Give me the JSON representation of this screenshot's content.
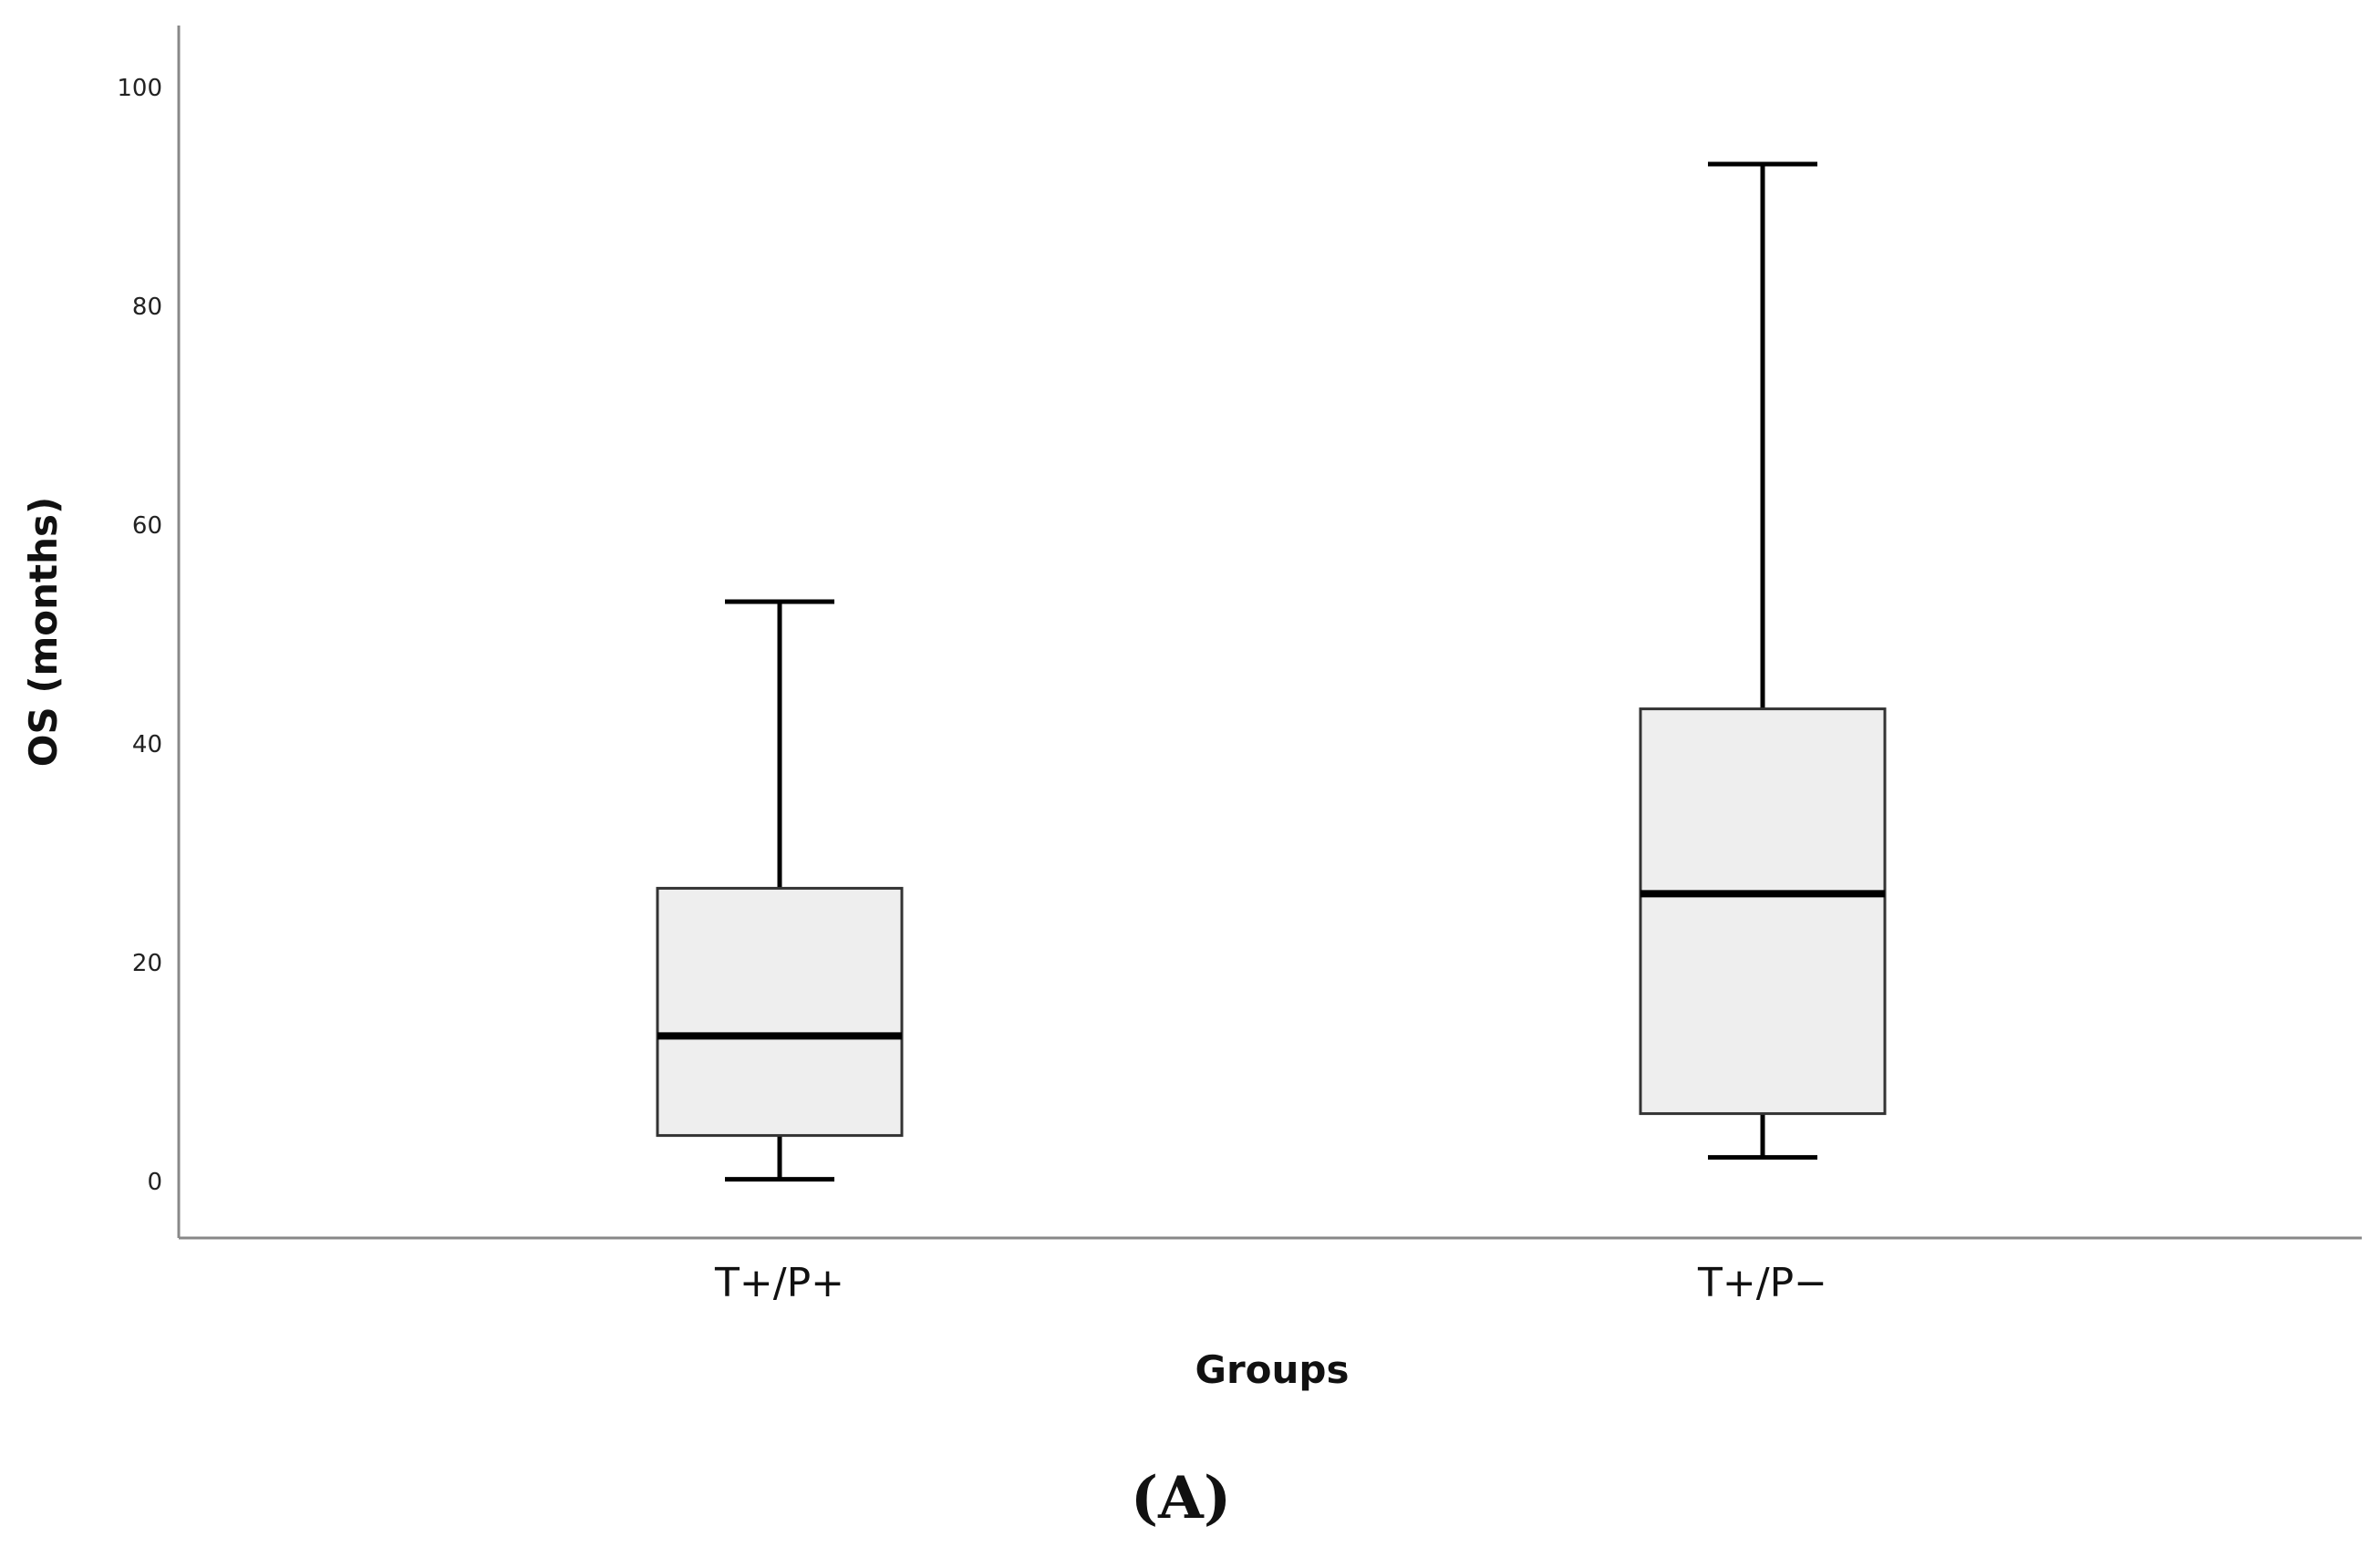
{
  "chart_data": {
    "type": "box",
    "title": "",
    "xlabel": "Groups",
    "ylabel": "OS (months)",
    "ylim": [
      0,
      105
    ],
    "yticks": [
      0,
      20,
      40,
      60,
      80,
      100
    ],
    "ytick_labels": [
      "0",
      "20",
      "40",
      "60",
      "80",
      "100"
    ],
    "categories": [
      "T+/P+",
      "T+/P−"
    ],
    "boxes": [
      {
        "category": "T+/P+",
        "whisker_low": 0.2,
        "q1": 4.2,
        "median": 13.3,
        "q3": 26.8,
        "whisker_high": 53.0
      },
      {
        "category": "T+/P−",
        "whisker_low": 2.2,
        "q1": 6.2,
        "median": 26.3,
        "q3": 43.2,
        "whisker_high": 93.0
      }
    ],
    "grid": false,
    "legend": "none",
    "box_fill": "#eeeeee",
    "line_color": "#000000"
  },
  "panel_label": "(A)"
}
